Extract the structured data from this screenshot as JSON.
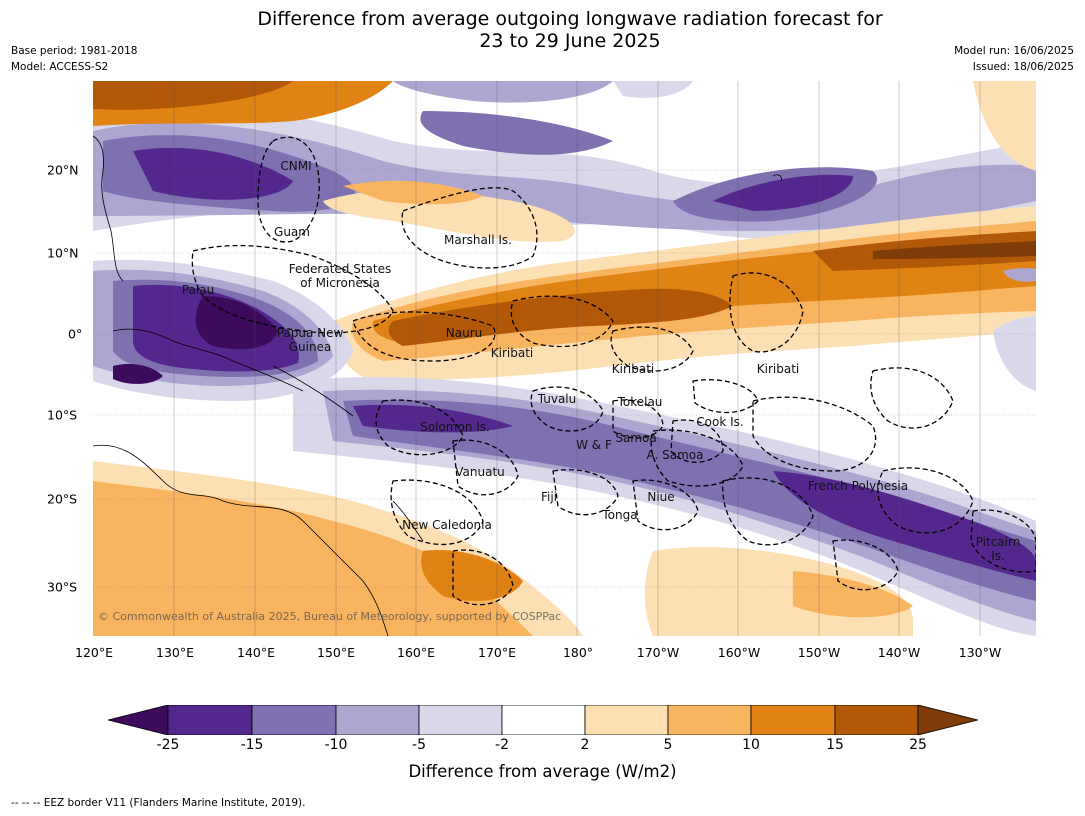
{
  "title_line1": "Difference from average outgoing longwave radiation forecast for",
  "title_line2": "23 to 29 June 2025",
  "base_period": "Base period: 1981-2018",
  "model": "Model: ACCESS-S2",
  "model_run": "Model run: 16/06/2025",
  "issued": "Issued: 18/06/2025",
  "lon_labels": [
    "120°E",
    "130°E",
    "140°E",
    "150°E",
    "160°E",
    "170°E",
    "180°",
    "170°W",
    "160°W",
    "150°W",
    "140°W",
    "130°W"
  ],
  "lat_labels": [
    "20°N",
    "10°N",
    "0°",
    "10°S",
    "20°S",
    "30°S"
  ],
  "regions": {
    "cnmi": "CNMI",
    "guam": "Guam",
    "marshall": "Marshall Is.",
    "fsm": "Federated States\nof Micronesia",
    "palau": "Palau",
    "png": "Papua New\nGuinea",
    "nauru": "Nauru",
    "kiribati_w": "Kiribati",
    "kiribati_c": "Kiribati",
    "kiribati_e": "Kiribati",
    "tuvalu": "Tuvalu",
    "tokelau": "Tokelau",
    "cook": "Cook Is.",
    "solomon": "Solomon Is.",
    "wf": "W & F",
    "samoa": "Samoa",
    "asamoa": "A. Samoa",
    "vanuatu": "Vanuatu",
    "fiji": "Fiji",
    "niue": "Niue",
    "tonga": "Tonga",
    "frenchpoly": "French Polynesia",
    "newcal": "New Caledonia",
    "pitcairn": "Pitcairn\nIs."
  },
  "copyright": "© Commonwealth of Australia 2025, Bureau of Meteorology, supported by COSPPac",
  "colorbar": {
    "ticks": [
      "-25",
      "-15",
      "-10",
      "-5",
      "-2",
      "2",
      "5",
      "10",
      "15",
      "25"
    ],
    "colors": [
      "#3d0a5c",
      "#54278f",
      "#7f70b0",
      "#aca6d0",
      "#d9d8ea",
      "#ffffff",
      "#fddfb4",
      "#f9b45f",
      "#e08214",
      "#b35806",
      "#7f3b08"
    ],
    "label": "Difference from average (W/m2)"
  },
  "footnote": "--  --  -- EEZ border V11 (Flanders Marine Institute, 2019)."
}
